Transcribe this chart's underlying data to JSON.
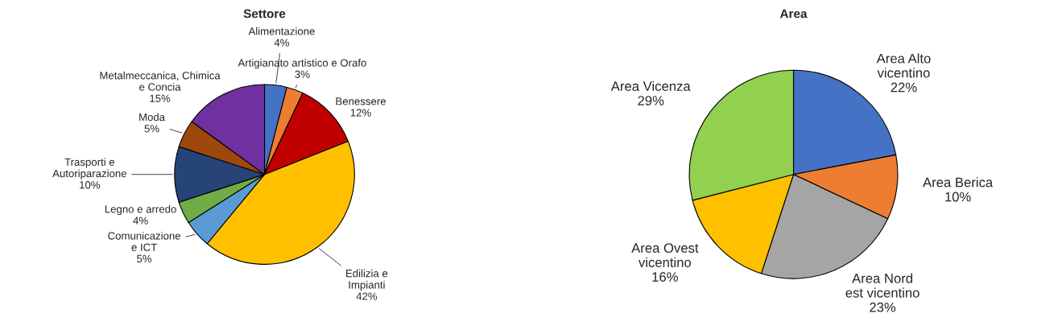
{
  "chart_data": [
    {
      "type": "pie",
      "title": "Settore",
      "categories": [
        "Alimentazione",
        "Artigianato artistico e Orafo",
        "Benessere",
        "Edilizia e\nImpianti",
        "Comunicazione\ne ICT",
        "Legno e arredo",
        "Trasporti e\nAutoriparazione",
        "Moda",
        "Metalmeccanica, Chimica\ne Concia"
      ],
      "values": [
        4,
        3,
        12,
        42,
        5,
        4,
        10,
        5,
        15
      ],
      "value_labels": [
        "4%",
        "3%",
        "12%",
        "42%",
        "5%",
        "4%",
        "10%",
        "5%",
        "15%"
      ],
      "colors": [
        "#4472c4",
        "#ed7d31",
        "#c00000",
        "#ffc000",
        "#5b9bd5",
        "#70ad47",
        "#264478",
        "#9e480e",
        "#7030a0"
      ]
    },
    {
      "type": "pie",
      "title": "Area",
      "categories": [
        "Area Alto\nvicentino",
        "Area Berica",
        "Area Nord\nest vicentino",
        "Area Ovest\nvicentino",
        "Area Vicenza"
      ],
      "values": [
        22,
        10,
        23,
        16,
        29
      ],
      "value_labels": [
        "22%",
        "10%",
        "23%",
        "16%",
        "29%"
      ],
      "colors": [
        "#4472c4",
        "#ed7d31",
        "#a5a5a5",
        "#ffc000",
        "#92d050"
      ]
    }
  ]
}
